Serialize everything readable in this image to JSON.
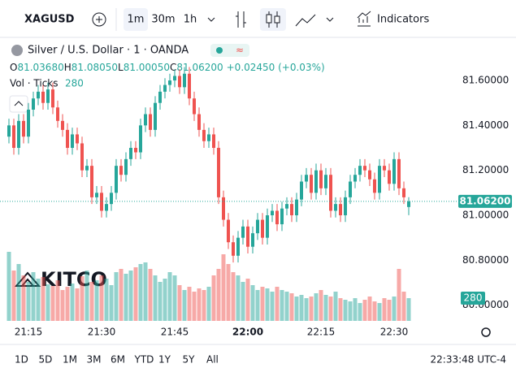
{
  "toolbar": {
    "symbol": "XAGUSD",
    "intervals": [
      "1m",
      "30m",
      "1h"
    ],
    "indicators": "Indicators"
  },
  "legend": {
    "title": "Silver / U.S. Dollar · 1 · OANDA",
    "ohlc": [
      {
        "key": "O",
        "value": "81.03680"
      },
      {
        "key": "H",
        "value": "81.08050"
      },
      {
        "key": "L",
        "value": "81.00050"
      },
      {
        "key": "C",
        "value": "81.06200"
      }
    ],
    "change": "+0.02450 (+0.03%)",
    "volume_title": "Vol · Ticks"
  },
  "watermark": "KITCO",
  "footer": {
    "ranges": [
      "1D",
      "5D",
      "1M",
      "3M",
      "6M",
      "YTD",
      "1Y",
      "5Y",
      "All"
    ],
    "clock": "22:33:48 UTC-4"
  },
  "chart_data": {
    "type": "candlestick",
    "categories": [
      null,
      null,
      null,
      null,
      "21:15",
      null,
      null,
      null,
      null,
      null,
      null,
      null,
      null,
      null,
      null,
      null,
      null,
      null,
      null,
      "21:30",
      null,
      null,
      null,
      null,
      null,
      null,
      null,
      null,
      null,
      null,
      null,
      null,
      null,
      null,
      "21:45",
      null,
      null,
      null,
      null,
      null,
      null,
      null,
      null,
      null,
      null,
      null,
      null,
      null,
      null,
      "22:00",
      null,
      null,
      null,
      null,
      null,
      null,
      null,
      null,
      null,
      null,
      null,
      null,
      null,
      null,
      "22:15",
      null,
      null,
      null,
      null,
      null,
      null,
      null,
      null,
      null,
      null,
      null,
      null,
      null,
      null,
      "22:30",
      null,
      null,
      null
    ],
    "open": [
      81.35,
      81.4,
      81.3,
      81.42,
      81.35,
      81.47,
      81.52,
      81.55,
      81.5,
      81.56,
      81.48,
      81.42,
      81.38,
      81.3,
      81.36,
      81.32,
      81.2,
      81.22,
      81.08,
      81.1,
      81.02,
      81.05,
      81.1,
      81.22,
      81.18,
      81.25,
      81.3,
      81.28,
      81.4,
      81.45,
      81.38,
      81.5,
      81.55,
      81.58,
      81.6,
      81.62,
      81.57,
      81.63,
      81.52,
      81.45,
      81.38,
      81.33,
      81.36,
      81.3,
      81.08,
      80.98,
      80.88,
      80.82,
      80.9,
      80.95,
      80.86,
      80.92,
      80.98,
      80.9,
      81.0,
      81.02,
      80.96,
      81.03,
      81.05,
      81.0,
      81.07,
      81.15,
      81.18,
      81.1,
      81.2,
      81.12,
      81.18,
      81.02,
      81.05,
      81.0,
      81.08,
      81.15,
      81.18,
      81.22,
      81.2,
      81.16,
      81.1,
      81.22,
      81.2,
      81.14,
      81.25,
      81.12,
      81.0368
    ],
    "high": [
      81.43,
      81.43,
      81.45,
      81.45,
      81.5,
      81.55,
      81.58,
      81.58,
      81.59,
      81.59,
      81.51,
      81.45,
      81.41,
      81.39,
      81.39,
      81.35,
      81.25,
      81.25,
      81.13,
      81.13,
      81.08,
      81.13,
      81.25,
      81.25,
      81.28,
      81.33,
      81.33,
      81.43,
      81.48,
      81.48,
      81.53,
      81.58,
      81.61,
      81.63,
      81.65,
      81.65,
      81.66,
      81.66,
      81.55,
      81.48,
      81.41,
      81.39,
      81.39,
      81.33,
      81.11,
      81.01,
      80.91,
      80.93,
      80.98,
      80.98,
      80.95,
      81.01,
      81.01,
      81.03,
      81.05,
      81.05,
      81.06,
      81.08,
      81.08,
      81.1,
      81.18,
      81.21,
      81.21,
      81.23,
      81.23,
      81.21,
      81.21,
      81.08,
      81.08,
      81.11,
      81.18,
      81.21,
      81.25,
      81.25,
      81.23,
      81.19,
      81.25,
      81.25,
      81.23,
      81.28,
      81.28,
      81.15,
      81.0805
    ],
    "low": [
      81.32,
      81.27,
      81.27,
      81.32,
      81.32,
      81.44,
      81.49,
      81.47,
      81.47,
      81.45,
      81.39,
      81.35,
      81.27,
      81.27,
      81.29,
      81.17,
      81.17,
      81.05,
      81.05,
      80.99,
      80.99,
      81.02,
      81.07,
      81.15,
      81.15,
      81.22,
      81.25,
      81.25,
      81.37,
      81.35,
      81.35,
      81.47,
      81.52,
      81.55,
      81.57,
      81.54,
      81.54,
      81.49,
      81.42,
      81.35,
      81.3,
      81.3,
      81.27,
      81.05,
      80.95,
      80.85,
      80.79,
      80.79,
      80.87,
      80.83,
      80.83,
      80.89,
      80.87,
      80.87,
      80.97,
      80.93,
      80.93,
      81.0,
      80.97,
      80.97,
      81.04,
      81.12,
      81.07,
      81.07,
      81.09,
      81.09,
      80.99,
      80.99,
      80.97,
      80.97,
      81.05,
      81.12,
      81.15,
      81.17,
      81.13,
      81.07,
      81.07,
      81.17,
      81.11,
      81.11,
      81.09,
      81.05,
      81.0005
    ],
    "close": [
      81.4,
      81.3,
      81.42,
      81.35,
      81.47,
      81.52,
      81.55,
      81.5,
      81.56,
      81.48,
      81.42,
      81.38,
      81.3,
      81.36,
      81.32,
      81.2,
      81.22,
      81.08,
      81.1,
      81.02,
      81.05,
      81.1,
      81.22,
      81.18,
      81.25,
      81.3,
      81.28,
      81.4,
      81.45,
      81.38,
      81.5,
      81.55,
      81.58,
      81.6,
      81.62,
      81.57,
      81.63,
      81.52,
      81.45,
      81.38,
      81.33,
      81.36,
      81.3,
      81.08,
      80.98,
      80.88,
      80.82,
      80.9,
      80.95,
      80.86,
      80.92,
      80.98,
      80.9,
      81.0,
      81.02,
      80.96,
      81.03,
      81.05,
      81.0,
      81.07,
      81.15,
      81.18,
      81.1,
      81.2,
      81.12,
      81.18,
      81.02,
      81.05,
      81.0,
      81.08,
      81.15,
      81.18,
      81.22,
      81.2,
      81.16,
      81.1,
      81.22,
      81.2,
      81.14,
      81.25,
      81.12,
      81.08,
      81.062
    ],
    "volume": [
      850,
      620,
      700,
      560,
      480,
      600,
      520,
      540,
      450,
      430,
      500,
      380,
      420,
      460,
      400,
      550,
      620,
      480,
      500,
      560,
      520,
      440,
      600,
      640,
      580,
      620,
      660,
      700,
      720,
      640,
      560,
      480,
      520,
      600,
      560,
      440,
      380,
      420,
      360,
      400,
      380,
      420,
      560,
      640,
      820,
      700,
      600,
      560,
      480,
      520,
      440,
      380,
      420,
      400,
      360,
      420,
      380,
      360,
      340,
      300,
      320,
      280,
      300,
      340,
      380,
      320,
      300,
      360,
      280,
      260,
      240,
      280,
      220,
      260,
      300,
      240,
      220,
      280,
      260,
      300,
      640,
      360,
      280
    ],
    "colors": {
      "up": "#26a69a",
      "down": "#ef5350"
    },
    "ylim": [
      80.53,
      81.705
    ],
    "yticks": [
      {
        "value": 80.6,
        "label": "80.60000"
      },
      {
        "value": 80.8,
        "label": "80.80000"
      },
      {
        "value": 81.0,
        "label": "81.00000"
      },
      {
        "value": 81.2,
        "label": "81.20000"
      },
      {
        "value": 81.4,
        "label": "81.40000"
      },
      {
        "value": 81.6,
        "label": "81.60000"
      }
    ],
    "y2lim": [
      0,
      3250
    ],
    "last_price": {
      "value": 81.062,
      "label": "81.06200"
    },
    "grid": false
  }
}
